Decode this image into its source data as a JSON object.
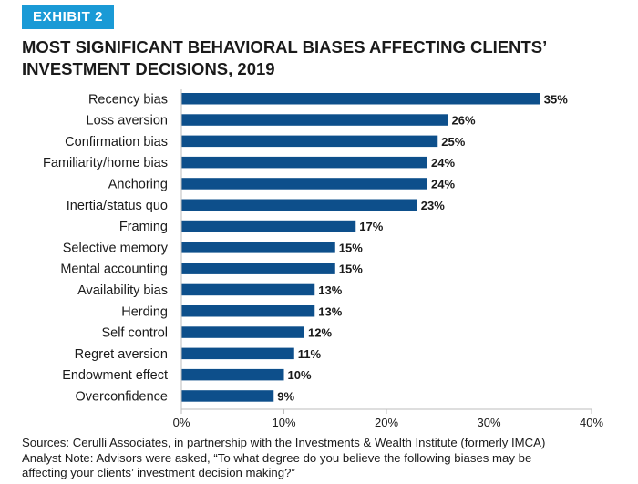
{
  "exhibit_label": "EXHIBIT 2",
  "title_line1": "MOST SIGNIFICANT BEHAVIORAL BIASES AFFECTING CLIENTS’",
  "title_line2": "INVESTMENT DECISIONS, 2019",
  "colors": {
    "bar": "#0d4f8b",
    "badge": "#1a9ad6",
    "axis": "#bdbdbd"
  },
  "chart_data": {
    "type": "bar",
    "orientation": "horizontal",
    "categories": [
      "Recency bias",
      "Loss aversion",
      "Confirmation bias",
      "Familiarity/home bias",
      "Anchoring",
      "Inertia/status quo",
      "Framing",
      "Selective memory",
      "Mental accounting",
      "Availability bias",
      "Herding",
      "Self control",
      "Regret aversion",
      "Endowment effect",
      "Overconfidence"
    ],
    "values": [
      35,
      26,
      25,
      24,
      24,
      23,
      17,
      15,
      15,
      13,
      13,
      12,
      11,
      10,
      9
    ],
    "value_labels": [
      "35%",
      "26%",
      "25%",
      "24%",
      "24%",
      "23%",
      "17%",
      "15%",
      "15%",
      "13%",
      "13%",
      "12%",
      "11%",
      "10%",
      "9%"
    ],
    "xlim": [
      0,
      40
    ],
    "xticks": [
      0,
      10,
      20,
      30,
      40
    ],
    "xtick_labels": [
      "0%",
      "10%",
      "20%",
      "30%",
      "40%"
    ],
    "grid": false,
    "legend": "none"
  },
  "notes": {
    "source": "Sources: Cerulli Associates, in partnership with the Investments & Wealth Institute (formerly IMCA)",
    "analyst_line1": "Analyst Note: Advisors were asked, “To what degree do you believe the following biases may be",
    "analyst_line2": "affecting your clients’ investment decision making?”"
  }
}
